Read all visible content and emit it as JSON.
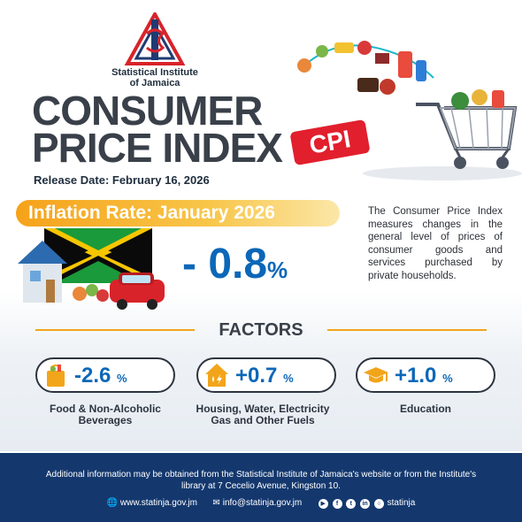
{
  "org": {
    "name_line1": "Statistical Institute",
    "name_line2": "of Jamaica"
  },
  "title": {
    "line1": "CONSUMER",
    "line2": "PRICE INDEX",
    "tag": "CPI"
  },
  "release_date": "Release Date: February 16, 2026",
  "banner": "Inflation Rate: January 2026",
  "inflation": {
    "value": "- 0.8",
    "unit": "%"
  },
  "description": "The Consumer Price Index measures changes in the general level of prices of consumer goods and services purchased by private households.",
  "factors_heading": "FACTORS",
  "factors": [
    {
      "value": "-2.6",
      "unit": "%",
      "name_line1": "Food & Non-Alcoholic",
      "name_line2": "Beverages",
      "icon": "grocery-bag-icon"
    },
    {
      "value": "+0.7",
      "unit": "%",
      "name_line1": "Housing, Water, Electricity",
      "name_line2": "Gas and Other Fuels",
      "icon": "house-utilities-icon"
    },
    {
      "value": "+1.0",
      "unit": "%",
      "name_line1": "Education",
      "name_line2": "",
      "icon": "graduation-cap-icon"
    }
  ],
  "footer": {
    "info_line1": "Additional information may be obtained from the Statistical Institute of Jamaica's website or from the Institute's",
    "info_line2": "library at 7 Cecelio Avenue, Kingston 10.",
    "website": "www.statinja.gov.jm",
    "email": "info@statinja.gov.jm",
    "social": "statinja"
  },
  "colors": {
    "accent_blue": "#0c67b8",
    "accent_orange": "#f6a21a",
    "tag_red": "#e21f2d",
    "footer_navy": "#14386e",
    "title_gray": "#3a4049"
  }
}
